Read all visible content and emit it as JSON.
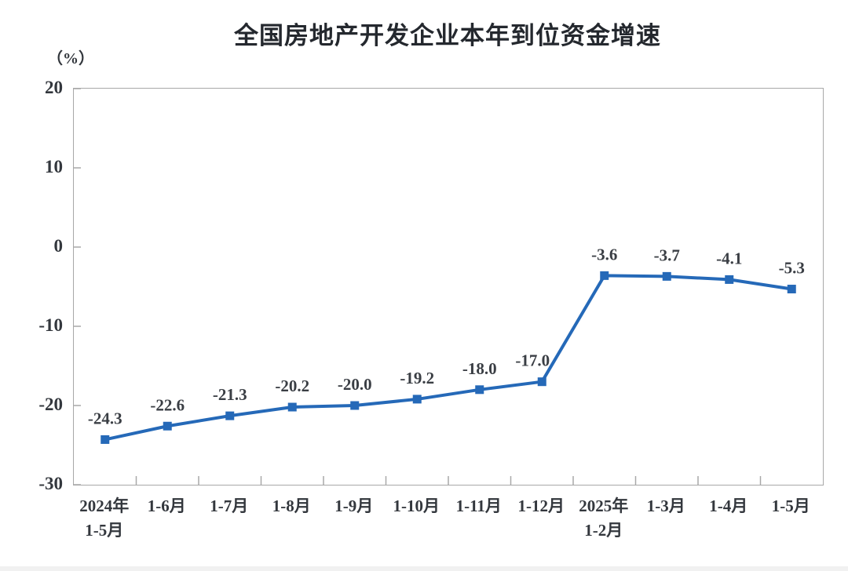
{
  "chart_data": {
    "type": "line",
    "title": "全国房地产开发企业本年到位资金增速",
    "unit_label": "（%）",
    "categories": [
      "2024年\n1-5月",
      "1-6月",
      "1-7月",
      "1-8月",
      "1-9月",
      "1-10月",
      "1-11月",
      "1-12月",
      "2025年\n1-2月",
      "1-3月",
      "1-4月",
      "1-5月"
    ],
    "values": [
      -24.3,
      -22.6,
      -21.3,
      -20.2,
      -20.0,
      -19.2,
      -18.0,
      -17.0,
      -3.6,
      -3.7,
      -4.1,
      -5.3
    ],
    "data_labels": [
      "-24.3",
      "-22.6",
      "-21.3",
      "-20.2",
      "-20.0",
      "-19.2",
      "-18.0",
      "-17.0",
      "-3.6",
      "-3.7",
      "-4.1",
      "-5.3"
    ],
    "yticks": [
      20,
      10,
      0,
      -10,
      -20,
      -30
    ],
    "ylim": [
      -30,
      20
    ],
    "xlabel": "",
    "ylabel": "（%）",
    "grid": false,
    "legend": "none",
    "marker": "square",
    "colors": {
      "line": "#2569b8",
      "marker": "#2569b8",
      "axis": "#a8a8a8",
      "tick_text": "#33373d",
      "data_label_text": "#3a3e44",
      "title_text": "#24282e",
      "bottom_strip": "#f1f1f1"
    }
  }
}
